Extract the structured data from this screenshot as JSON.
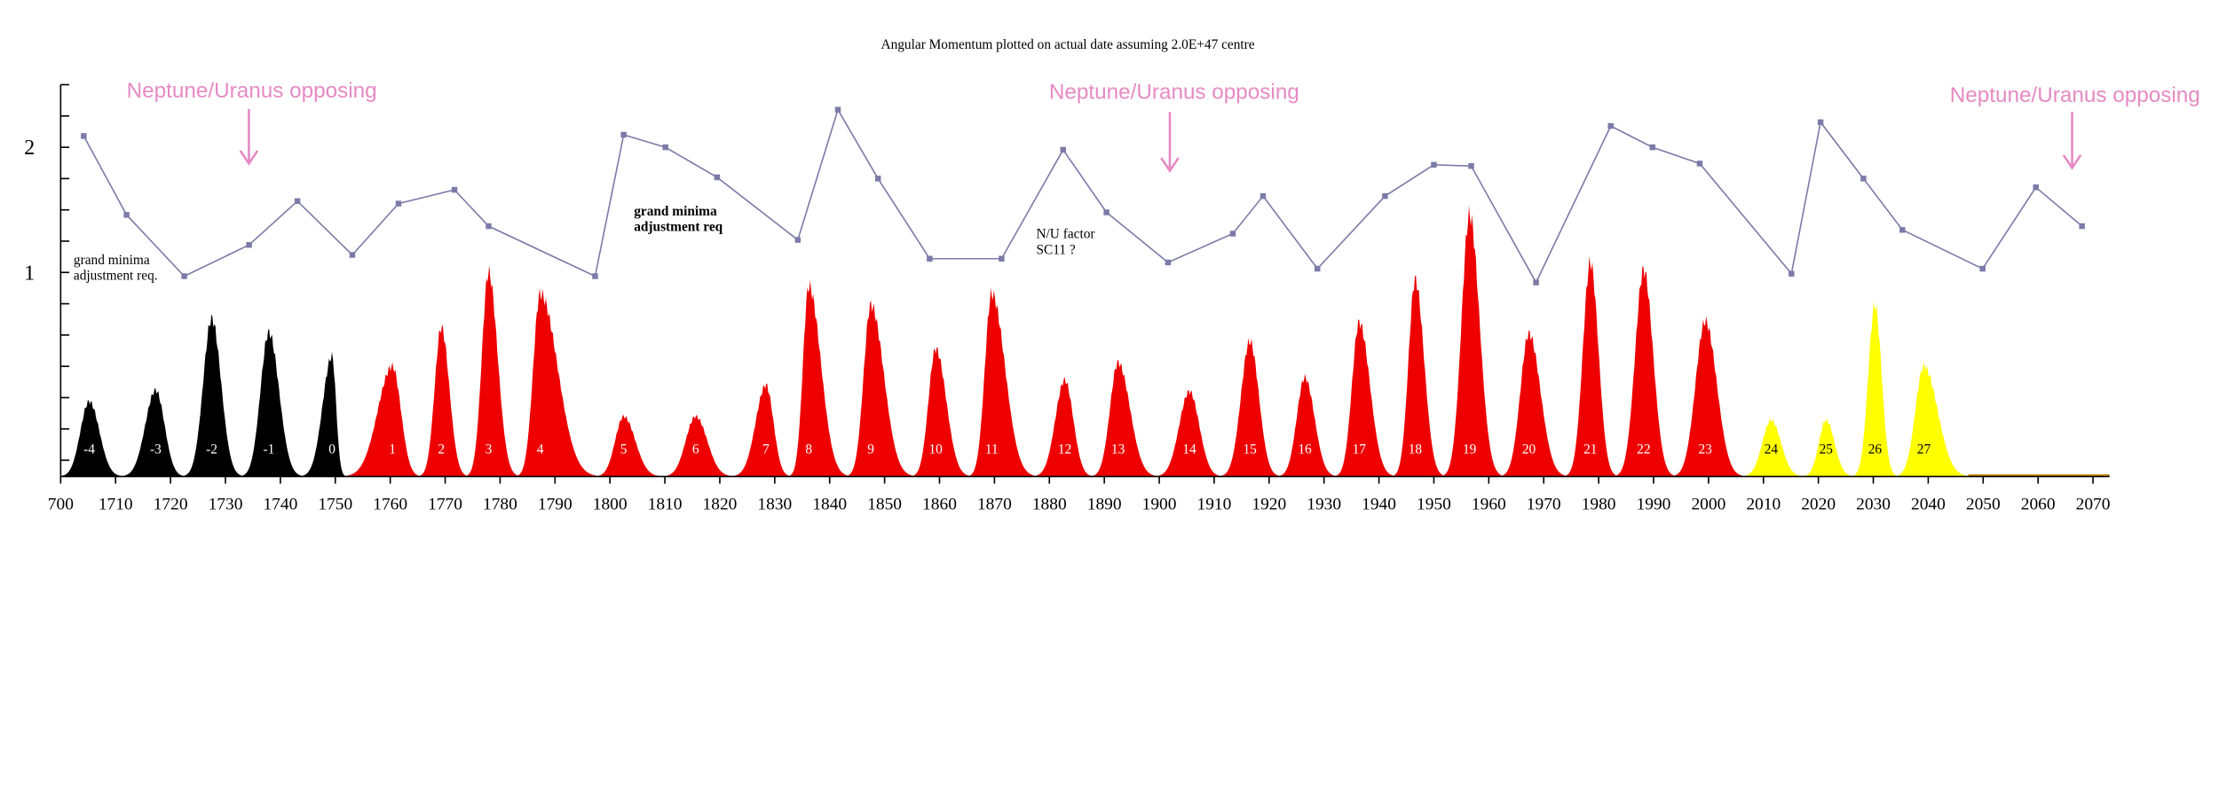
{
  "chart_data": {
    "type": "line",
    "title": "Angular Momentum plotted on actual date assuming 2.0E+47 centre",
    "x": [
      1704.2,
      1712,
      1722.5,
      1734.3,
      1743.1,
      1753.1,
      1761.5,
      1771.7,
      1777.9,
      1797.3,
      1802.5,
      1810.1,
      1819.5,
      1834.2,
      1841.5,
      1848.8,
      1858.2,
      1871.3,
      1882.5,
      1890.4,
      1901.6,
      1913.4,
      1918.9,
      1928.8,
      1941.1,
      1950,
      1956.8,
      1968.6,
      1982.2,
      1989.8,
      1998.4,
      2015.1,
      2020.4,
      2028.2,
      2035.3,
      2049.9,
      2059.6,
      2068
    ],
    "values": [
      2.09,
      1.46,
      0.97,
      1.22,
      1.57,
      1.14,
      1.55,
      1.66,
      1.37,
      0.97,
      2.1,
      2.0,
      1.76,
      1.26,
      2.3,
      1.75,
      1.11,
      1.11,
      1.98,
      1.48,
      1.08,
      1.31,
      1.61,
      1.03,
      1.61,
      1.86,
      1.85,
      0.92,
      2.17,
      2.0,
      1.87,
      0.99,
      2.2,
      1.75,
      1.34,
      1.03,
      1.68,
      1.37
    ],
    "color": "#7b7ba8",
    "xlim": [
      1700,
      2073
    ],
    "xticks": [
      {
        "value": 1700,
        "label": "700"
      },
      1710,
      1720,
      1730,
      1740,
      1750,
      1760,
      1770,
      1780,
      1790,
      1800,
      1810,
      1820,
      1830,
      1840,
      1850,
      1860,
      1870,
      1880,
      1890,
      1900,
      1910,
      1920,
      1930,
      1940,
      1950,
      1960,
      1970,
      1980,
      1990,
      2000,
      2010,
      2020,
      2030,
      2040,
      2050,
      2060,
      2070
    ],
    "ylim": [
      -0.63,
      2.5
    ],
    "yticks": [
      1,
      2
    ],
    "minor_yticks": [
      2.5,
      2.25,
      1.75,
      1.5,
      1.25,
      0.75,
      0.5,
      0.25,
      0,
      -0.25,
      -0.5
    ],
    "cycles": [
      {
        "label": "-4",
        "start": 1700,
        "peak": 1705.2,
        "end": 1711.2,
        "value": -0.03,
        "color": "#000000",
        "label_color": "#ffffff"
      },
      {
        "label": "-3",
        "start": 1711.2,
        "peak": 1717.3,
        "end": 1722.5,
        "value": 0.06,
        "color": "#000000",
        "label_color": "#ffffff"
      },
      {
        "label": "-2",
        "start": 1722.5,
        "peak": 1727.5,
        "end": 1733,
        "value": 0.63,
        "color": "#000000",
        "label_color": "#ffffff"
      },
      {
        "label": "-1",
        "start": 1733,
        "peak": 1737.9,
        "end": 1743.9,
        "value": 0.52,
        "color": "#000000",
        "label_color": "#ffffff"
      },
      {
        "label": "0",
        "start": 1743.9,
        "peak": 1749.4,
        "end": 1751.8,
        "value": 0.33,
        "color": "#000000",
        "label_color": "#ffffff"
      },
      {
        "label": "1",
        "start": 1751.8,
        "peak": 1760.4,
        "end": 1765.4,
        "value": 0.25,
        "color": "#ee0000",
        "label_color": "#ffffff"
      },
      {
        "label": "2",
        "start": 1765.4,
        "peak": 1769.3,
        "end": 1774,
        "value": 0.56,
        "color": "#ee0000",
        "label_color": "#ffffff"
      },
      {
        "label": "3",
        "start": 1774,
        "peak": 1777.9,
        "end": 1783.2,
        "value": 1.0,
        "color": "#ee0000",
        "label_color": "#ffffff"
      },
      {
        "label": "4",
        "start": 1783.2,
        "peak": 1787.3,
        "end": 1797.5,
        "value": 0.83,
        "color": "#ee0000",
        "label_color": "#ffffff"
      },
      {
        "label": "5",
        "start": 1797.5,
        "peak": 1802.5,
        "end": 1809.3,
        "value": -0.15,
        "color": "#ee0000",
        "label_color": "#ffffff"
      },
      {
        "label": "6",
        "start": 1809.8,
        "peak": 1815.6,
        "end": 1822.4,
        "value": -0.15,
        "color": "#ee0000",
        "label_color": "#ffffff"
      },
      {
        "label": "7",
        "start": 1822.4,
        "peak": 1828.4,
        "end": 1832.8,
        "value": 0.1,
        "color": "#ee0000",
        "label_color": "#ffffff"
      },
      {
        "label": "8",
        "start": 1832.8,
        "peak": 1836.2,
        "end": 1843.3,
        "value": 0.89,
        "color": "#ee0000",
        "label_color": "#ffffff"
      },
      {
        "label": "9",
        "start": 1843.3,
        "peak": 1847.5,
        "end": 1855.1,
        "value": 0.74,
        "color": "#ee0000",
        "label_color": "#ffffff"
      },
      {
        "label": "10",
        "start": 1855.1,
        "peak": 1859.3,
        "end": 1865.5,
        "value": 0.39,
        "color": "#ee0000",
        "label_color": "#ffffff"
      },
      {
        "label": "11",
        "start": 1865.5,
        "peak": 1869.5,
        "end": 1877.3,
        "value": 0.83,
        "color": "#ee0000",
        "label_color": "#ffffff"
      },
      {
        "label": "12",
        "start": 1877.3,
        "peak": 1882.8,
        "end": 1887.8,
        "value": 0.14,
        "color": "#ee0000",
        "label_color": "#ffffff"
      },
      {
        "label": "13",
        "start": 1887.8,
        "peak": 1892.5,
        "end": 1899.5,
        "value": 0.28,
        "color": "#ee0000",
        "label_color": "#ffffff"
      },
      {
        "label": "14",
        "start": 1899.5,
        "peak": 1905.5,
        "end": 1911.3,
        "value": 0.05,
        "color": "#ee0000",
        "label_color": "#ffffff"
      },
      {
        "label": "15",
        "start": 1911.3,
        "peak": 1916.5,
        "end": 1921.8,
        "value": 0.45,
        "color": "#ee0000",
        "label_color": "#ffffff"
      },
      {
        "label": "16",
        "start": 1921.8,
        "peak": 1926.5,
        "end": 1932.2,
        "value": 0.16,
        "color": "#ee0000",
        "label_color": "#ffffff"
      },
      {
        "label": "17",
        "start": 1932.2,
        "peak": 1936.4,
        "end": 1942.7,
        "value": 0.6,
        "color": "#ee0000",
        "label_color": "#ffffff"
      },
      {
        "label": "18",
        "start": 1942.7,
        "peak": 1946.6,
        "end": 1951.8,
        "value": 0.94,
        "color": "#ee0000",
        "label_color": "#ffffff"
      },
      {
        "label": "19",
        "start": 1951.8,
        "peak": 1956.5,
        "end": 1962.3,
        "value": 1.46,
        "color": "#ee0000",
        "label_color": "#ffffff"
      },
      {
        "label": "20",
        "start": 1962.3,
        "peak": 1967.3,
        "end": 1974.1,
        "value": 0.51,
        "color": "#ee0000",
        "label_color": "#ffffff"
      },
      {
        "label": "21",
        "start": 1974.1,
        "peak": 1978.5,
        "end": 1983.2,
        "value": 1.08,
        "color": "#ee0000",
        "label_color": "#ffffff"
      },
      {
        "label": "22",
        "start": 1983.2,
        "peak": 1988.2,
        "end": 1993.7,
        "value": 1.02,
        "color": "#ee0000",
        "label_color": "#ffffff"
      },
      {
        "label": "23",
        "start": 1993.7,
        "peak": 1999.4,
        "end": 2006.2,
        "value": 0.61,
        "color": "#ee0000",
        "label_color": "#ffffff"
      },
      {
        "label": "24",
        "start": 2006.2,
        "peak": 2011.4,
        "end": 2017.2,
        "value": -0.18,
        "color": "#ffff00",
        "label_color": "#000000"
      },
      {
        "label": "25",
        "start": 2017.2,
        "peak": 2021.4,
        "end": 2026.4,
        "value": -0.18,
        "color": "#ffff00",
        "label_color": "#000000"
      },
      {
        "label": "26",
        "start": 2026.4,
        "peak": 2030.3,
        "end": 2034.2,
        "value": 0.74,
        "color": "#ffff00",
        "label_color": "#000000"
      },
      {
        "label": "27",
        "start": 2034.2,
        "peak": 2039.2,
        "end": 2047.3,
        "value": 0.25,
        "color": "#ffff00",
        "label_color": "#000000"
      }
    ],
    "annotations": [
      {
        "lines": [
          "Neptune/Uranus opposing"
        ]
      },
      {
        "lines": [
          "Neptune/Uranus opposing"
        ]
      },
      {
        "lines": [
          "Neptune/Uranus opposing"
        ]
      },
      {
        "lines": [
          "grand minima",
          "adjustment req."
        ]
      },
      {
        "lines": [
          "grand minima",
          "adjustment req"
        ]
      },
      {
        "lines": [
          "N/U factor",
          "SC11 ?"
        ]
      }
    ]
  }
}
